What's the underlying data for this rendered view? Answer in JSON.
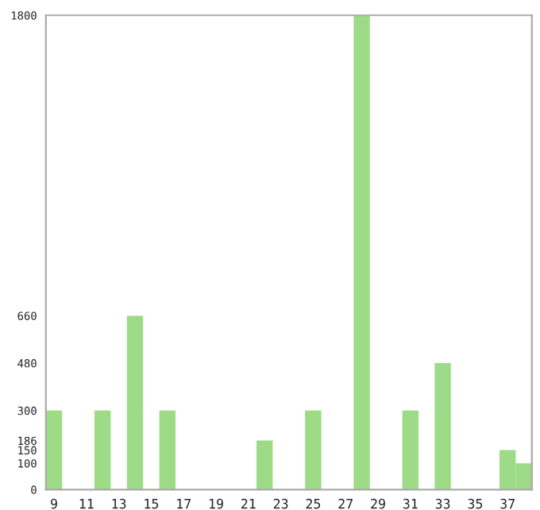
{
  "chart_data": {
    "type": "bar",
    "categories": [
      "9",
      null,
      "11",
      null,
      "13",
      null,
      "15",
      null,
      "17",
      null,
      "19",
      null,
      "21",
      null,
      "23",
      null,
      "25",
      null,
      "27",
      null,
      "29",
      null,
      "31",
      null,
      "33",
      null,
      "35",
      null,
      "37",
      null
    ],
    "values": [
      300,
      0,
      0,
      300,
      0,
      660,
      0,
      300,
      0,
      0,
      0,
      0,
      0,
      186,
      0,
      0,
      300,
      0,
      0,
      1800,
      0,
      0,
      300,
      0,
      480,
      0,
      0,
      0,
      150,
      100
    ],
    "color": "#9ddb87",
    "ylim": [
      0,
      1800
    ],
    "yticks": [
      0,
      100,
      150,
      186,
      300,
      480,
      660,
      1800
    ],
    "grid": false,
    "legend": false
  }
}
